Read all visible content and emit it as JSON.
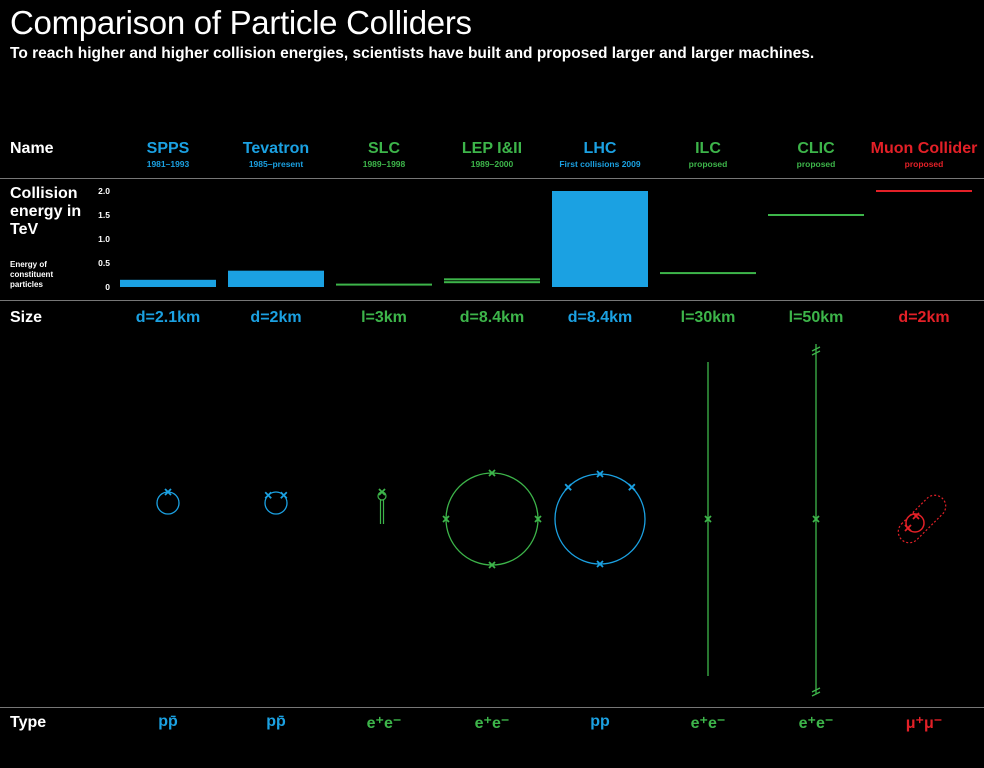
{
  "header": {
    "title": "Comparison of Particle Colliders",
    "subtitle": "To reach higher and higher collision energies, scientists have built and proposed larger and larger machines."
  },
  "rows": {
    "name": "Name",
    "energy": "Collision energy in TeV",
    "energy_note": "Energy of constituent particles",
    "size": "Size",
    "type": "Type"
  },
  "colors": {
    "blue": "#1ba1e2",
    "green": "#3db54a",
    "red": "#e32027",
    "rule": "#777777"
  },
  "chart_data": {
    "type": "bar",
    "ylabel": "Collision energy in TeV",
    "ylim": [
      0,
      2
    ],
    "yticks": [
      "0",
      "0.5",
      "1.0",
      "1.5",
      "2.0"
    ],
    "categories": [
      "SPPS",
      "Tevatron",
      "SLC",
      "LEP I&II",
      "LHC",
      "ILC",
      "CLIC",
      "Muon Collider"
    ],
    "colliders": [
      {
        "name": "SPPS",
        "years": "1981–1993",
        "energy": 0.15,
        "style": "fill",
        "size": "d=2.1km",
        "type": "pp̄",
        "color": "blue",
        "shape": "ring",
        "r": 11,
        "markers": [
          90
        ]
      },
      {
        "name": "Tevatron",
        "years": "1985–present",
        "energy": 0.34,
        "style": "fill",
        "size": "d=2km",
        "type": "pp̄",
        "color": "blue",
        "shape": "ring",
        "r": 11,
        "markers": [
          45,
          135
        ]
      },
      {
        "name": "SLC",
        "years": "1989–1998",
        "energy": 0.05,
        "style": "line",
        "size": "l=3km",
        "type": "e⁺e⁻",
        "color": "green",
        "shape": "slc"
      },
      {
        "name": "LEP I&II",
        "years": "1989–2000",
        "energy": 0.1,
        "energy2": 0.16,
        "style": "double",
        "size": "d=8.4km",
        "type": "e⁺e⁻",
        "color": "green",
        "shape": "ring",
        "r": 46,
        "markers": [
          0,
          90,
          180,
          270
        ]
      },
      {
        "name": "LHC",
        "years": "First collisions 2009",
        "energy": 2.0,
        "style": "fill",
        "size": "d=8.4km",
        "type": "pp",
        "color": "blue",
        "shape": "ring",
        "r": 45,
        "markers": [
          45,
          90,
          135,
          270
        ]
      },
      {
        "name": "ILC",
        "years": "proposed",
        "energy": 0.29,
        "style": "line",
        "size": "l=30km",
        "type": "e⁺e⁻",
        "color": "green",
        "shape": "linear",
        "half": 157,
        "breaks": false
      },
      {
        "name": "CLIC",
        "years": "proposed",
        "energy": 1.5,
        "style": "line",
        "size": "l=50km",
        "type": "e⁺e⁻",
        "color": "green",
        "shape": "linear",
        "half": 175,
        "breaks": true
      },
      {
        "name": "Muon Collider",
        "years": "proposed",
        "energy": 2.0,
        "style": "line",
        "size": "d=2km",
        "type": "μ⁺μ⁻",
        "color": "red",
        "shape": "muon"
      }
    ]
  }
}
